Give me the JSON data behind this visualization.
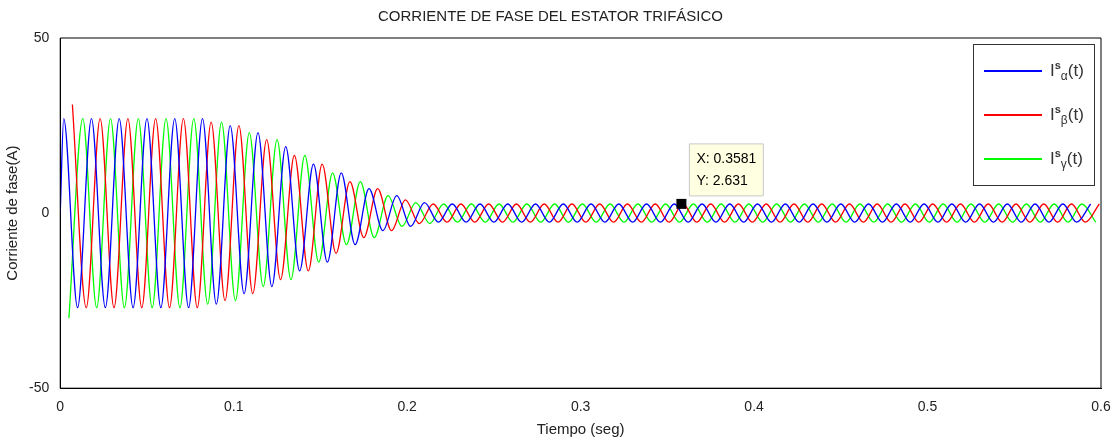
{
  "chart_data": {
    "type": "line",
    "title": "CORRIENTE DE FASE DEL ESTATOR TRIFÁSICO",
    "xlabel": "Tiempo (seg)",
    "ylabel": "Corriente de fase(A)",
    "xlim": [
      0,
      0.6
    ],
    "xticks": [
      0,
      0.1,
      0.2,
      0.3,
      0.4,
      0.5,
      0.6
    ],
    "ylim": [
      -50,
      50
    ],
    "yticks": [
      -50,
      0,
      50
    ],
    "grid": false,
    "legend": "top right",
    "marker": "none",
    "line_style": "solid",
    "annotations": [
      {
        "text": "X: 0.3581\nY: 2.631",
        "x": 0.3581,
        "y": 2.631
      }
    ],
    "series": [
      {
        "name": "I$^{s}$$_{α}$(t)",
        "color": "#0000ff",
        "x": [
          0,
          0.002,
          0.01,
          0.018,
          0.026,
          0.034,
          0.042,
          0.05,
          0.058,
          0.066,
          0.074,
          0.082,
          0.09,
          0.098,
          0.106,
          0.114,
          0.122,
          0.13,
          0.138,
          0.146,
          0.154,
          0.162,
          0.17,
          0.178,
          0.186,
          0.194,
          0.202,
          0.21,
          0.218,
          0.226,
          0.234,
          0.242,
          0.25,
          0.258,
          0.266,
          0.274,
          0.282,
          0.29,
          0.298,
          0.306,
          0.314,
          0.322,
          0.33,
          0.338,
          0.346,
          0.354,
          0.362,
          0.37,
          0.378,
          0.386,
          0.394,
          0.402,
          0.41,
          0.418,
          0.426,
          0.434,
          0.442,
          0.45,
          0.458,
          0.466,
          0.474,
          0.482,
          0.49,
          0.498,
          0.506,
          0.514,
          0.522,
          0.53,
          0.538,
          0.546,
          0.554,
          0.562,
          0.57,
          0.578,
          0.586,
          0.594
        ],
        "values": [
          0,
          27,
          -27,
          27,
          -27,
          27,
          -27,
          27,
          -27,
          27,
          -27,
          27,
          -26,
          25,
          -23,
          23,
          -21,
          19,
          -16.5,
          14,
          -14,
          11.5,
          -9,
          7,
          -5,
          5,
          -3.8,
          3,
          -2.6,
          2.6,
          -2.6,
          2.6,
          -2.6,
          2.6,
          -2.6,
          2.6,
          -2.6,
          2.6,
          -2.6,
          2.6,
          -2.6,
          2.6,
          -2.6,
          2.6,
          -2.6,
          2.6,
          -2.6,
          2.6,
          -2.6,
          2.6,
          -2.6,
          2.6,
          -2.6,
          2.6,
          -2.6,
          2.6,
          -2.6,
          2.6,
          -2.6,
          2.6,
          -2.6,
          2.6,
          -2.6,
          2.6,
          -2.6,
          2.6,
          -2.6,
          2.6,
          -2.6,
          2.6,
          -2.6,
          2.6,
          -2.6,
          2.6,
          -2.6,
          2.6
        ]
      },
      {
        "name": "I$^{s}$$_{β}$(t)",
        "color": "#ff0000",
        "x": [
          0.007,
          0.015,
          0.023,
          0.031,
          0.039,
          0.047,
          0.055,
          0.063,
          0.071,
          0.079,
          0.087,
          0.095,
          0.103,
          0.111,
          0.119,
          0.127,
          0.135,
          0.143,
          0.151,
          0.159,
          0.167,
          0.175,
          0.183,
          0.191,
          0.199,
          0.207,
          0.215,
          0.223,
          0.231,
          0.239,
          0.247,
          0.255,
          0.263,
          0.271,
          0.279,
          0.287,
          0.295,
          0.303,
          0.311,
          0.319,
          0.327,
          0.335,
          0.343,
          0.351,
          0.359,
          0.367,
          0.375,
          0.383,
          0.391,
          0.399,
          0.407,
          0.415,
          0.423,
          0.431,
          0.439,
          0.447,
          0.455,
          0.463,
          0.471,
          0.479,
          0.487,
          0.495,
          0.503,
          0.511,
          0.519,
          0.527,
          0.535,
          0.543,
          0.551,
          0.559,
          0.567,
          0.575,
          0.583,
          0.591,
          0.599
        ],
        "values": [
          31,
          -27,
          27,
          -27,
          27,
          -27,
          27,
          -27,
          27,
          -27,
          26,
          -25,
          25,
          -23,
          21,
          -19,
          16.5,
          -16.5,
          14,
          -11.5,
          9,
          -7,
          7,
          -5,
          3.8,
          -3,
          2.6,
          -2.6,
          2.6,
          -2.6,
          2.6,
          -2.6,
          2.6,
          -2.6,
          2.6,
          -2.6,
          2.6,
          -2.6,
          2.6,
          -2.6,
          2.6,
          -2.6,
          2.6,
          -2.6,
          2.6,
          -2.6,
          2.6,
          -2.6,
          2.6,
          -2.6,
          2.6,
          -2.6,
          2.6,
          -2.6,
          2.6,
          -2.6,
          2.6,
          -2.6,
          2.6,
          -2.6,
          2.6,
          -2.6,
          2.6,
          -2.6,
          2.6,
          -2.6,
          2.6,
          -2.6,
          2.6,
          -2.6,
          2.6,
          -2.6,
          2.6,
          -2.6,
          2.6
        ]
      },
      {
        "name": "I$^{s}$$_{γ}$(t)",
        "color": "#00ff00",
        "x": [
          0.005,
          0.013,
          0.021,
          0.029,
          0.037,
          0.045,
          0.053,
          0.061,
          0.069,
          0.077,
          0.085,
          0.093,
          0.101,
          0.109,
          0.117,
          0.125,
          0.133,
          0.141,
          0.149,
          0.157,
          0.165,
          0.173,
          0.181,
          0.189,
          0.197,
          0.205,
          0.213,
          0.221,
          0.229,
          0.237,
          0.245,
          0.253,
          0.261,
          0.269,
          0.277,
          0.285,
          0.293,
          0.301,
          0.309,
          0.317,
          0.325,
          0.333,
          0.341,
          0.349,
          0.357,
          0.365,
          0.373,
          0.381,
          0.389,
          0.397,
          0.405,
          0.413,
          0.421,
          0.429,
          0.437,
          0.445,
          0.453,
          0.461,
          0.469,
          0.477,
          0.485,
          0.493,
          0.501,
          0.509,
          0.517,
          0.525,
          0.533,
          0.541,
          0.549,
          0.557,
          0.565,
          0.573,
          0.581,
          0.589,
          0.597
        ],
        "values": [
          -30,
          27,
          -27,
          27,
          -27,
          27,
          -27,
          27,
          -27,
          27,
          -26,
          26,
          -25,
          23,
          -21,
          21,
          -19,
          16.5,
          -14,
          11.5,
          -9,
          9,
          -7,
          5,
          -3.8,
          3,
          -3,
          2.6,
          -2.6,
          2.6,
          -2.6,
          2.6,
          -2.6,
          2.6,
          -2.6,
          2.6,
          -2.6,
          2.6,
          -2.6,
          2.6,
          -2.6,
          2.6,
          -2.6,
          2.6,
          -2.6,
          2.6,
          -2.6,
          2.6,
          -2.6,
          2.6,
          -2.6,
          2.6,
          -2.6,
          2.6,
          -2.6,
          2.6,
          -2.6,
          2.6,
          -2.6,
          2.6,
          -2.6,
          2.6,
          -2.6,
          2.6,
          -2.6,
          2.6,
          -2.6,
          2.6,
          -2.6,
          2.6,
          -2.6,
          2.6,
          -2.6,
          2.6,
          -2.6
        ]
      }
    ]
  }
}
